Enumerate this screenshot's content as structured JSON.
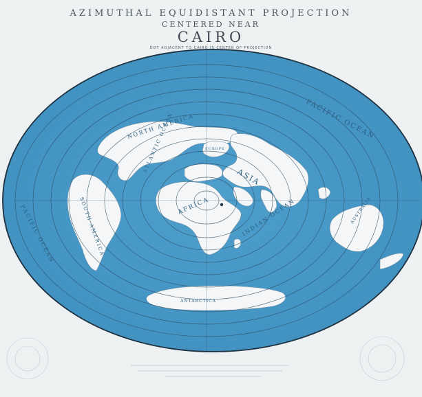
{
  "title": {
    "line1": "AZIMUTHAL EQUIDISTANT PROJECTION",
    "line2": "CENTERED NEAR",
    "line3": "CAIRO",
    "line4": "DOT ADJACENT TO CAIRO IS CENTER OF PROJECTION"
  },
  "labels": {
    "north_america": "NORTH AMERICA",
    "asia": "ASIA",
    "africa": "AFRICA",
    "south_america": "SOUTH AMERICA",
    "antarctica": "ANTARCTICA",
    "australia": "AUSTRALIA",
    "pacific_ocean_right": "PACIFIC OCEAN",
    "pacific_ocean_left": "PACIFIC OCEAN",
    "atlantic_ocean": "ATLANTIC OCEAN",
    "indian_ocean": "INDIAN OCEAN",
    "europe": "EUROPE"
  },
  "colors": {
    "ocean": "#4a9ac9",
    "land": "#f4f6f7",
    "paper": "#eef1f2",
    "ink": "#4a5560"
  }
}
